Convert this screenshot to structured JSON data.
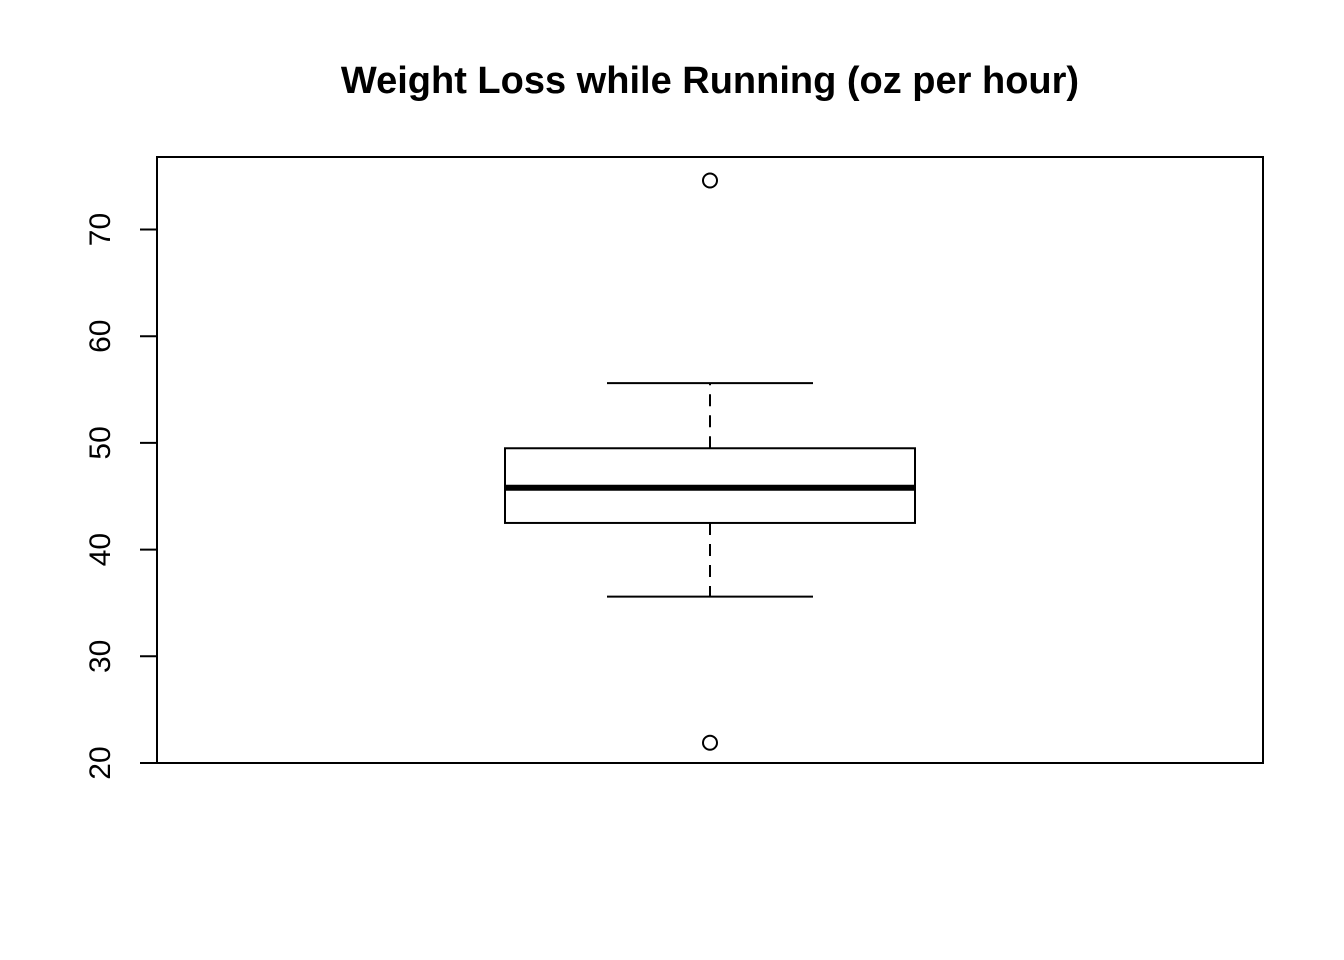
{
  "chart_data": {
    "type": "boxplot",
    "title": "Weight Loss while Running (oz per hour)",
    "xlabel": "",
    "ylabel": "",
    "ylim": [
      20,
      76.8
    ],
    "yticks": [
      20,
      30,
      40,
      50,
      60,
      70
    ],
    "ytick_labels": [
      "20",
      "30",
      "40",
      "50",
      "60",
      "70"
    ],
    "grid": false,
    "box": {
      "whisker_low": 35.6,
      "q1": 42.5,
      "median": 45.8,
      "q3": 49.5,
      "whisker_high": 55.6,
      "outliers": [
        74.6,
        21.9
      ]
    },
    "colors": {
      "stroke": "#000000",
      "background": "#ffffff"
    }
  }
}
